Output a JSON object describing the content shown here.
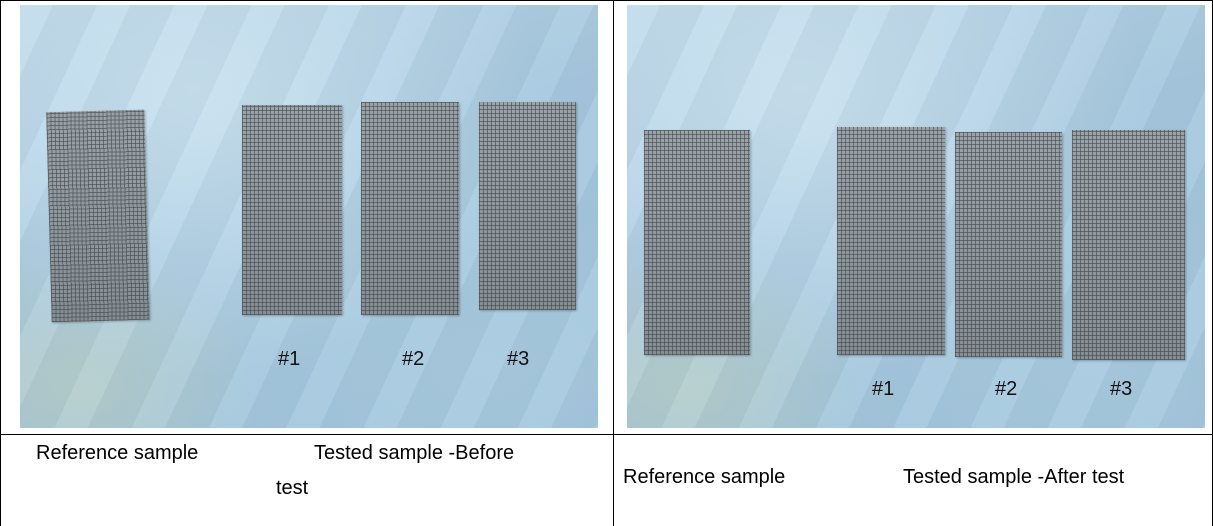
{
  "panels": [
    {
      "labels": [
        "#1",
        "#2",
        "#3"
      ],
      "caption": {
        "reference": "Reference sample",
        "tested_line1": "Tested sample -Before",
        "tested_line2": "test"
      }
    },
    {
      "labels": [
        "#1",
        "#2",
        "#3"
      ],
      "caption": {
        "reference": "Reference sample",
        "tested": "Tested sample -After test"
      }
    }
  ]
}
